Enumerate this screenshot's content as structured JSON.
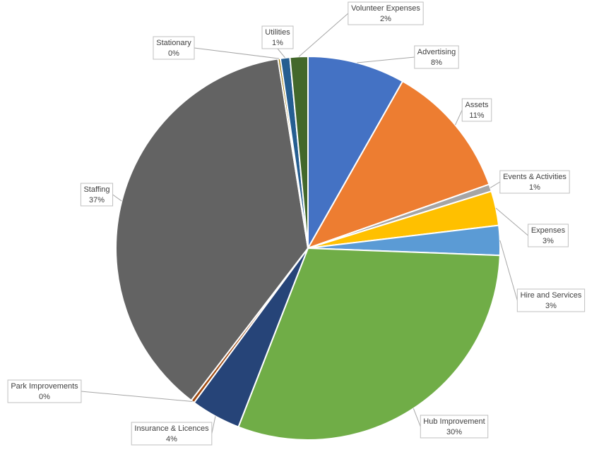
{
  "chart_data": {
    "type": "pie",
    "categories": [
      "Advertising",
      "Assets",
      "Events & Activities",
      "Expenses",
      "Hire and Services",
      "Hub Improvement",
      "Insurance & Licences",
      "Park Improvements",
      "Staffing",
      "Stationary",
      "Utilities",
      "Volunteer Expenses"
    ],
    "values": [
      8.2,
      11.4,
      0.6,
      2.9,
      2.5,
      30.3,
      4.2,
      0.3,
      37.1,
      0.2,
      0.8,
      1.5
    ],
    "value_labels": [
      "8%",
      "11%",
      "1%",
      "3%",
      "3%",
      "30%",
      "4%",
      "0%",
      "37%",
      "0%",
      "1%",
      "2%"
    ],
    "colors": [
      "#4472c4",
      "#ed7d31",
      "#a5a5a5",
      "#ffc000",
      "#5b9bd5",
      "#70ad47",
      "#264478",
      "#9e480e",
      "#636363",
      "#997300",
      "#255e91",
      "#43682b"
    ]
  }
}
